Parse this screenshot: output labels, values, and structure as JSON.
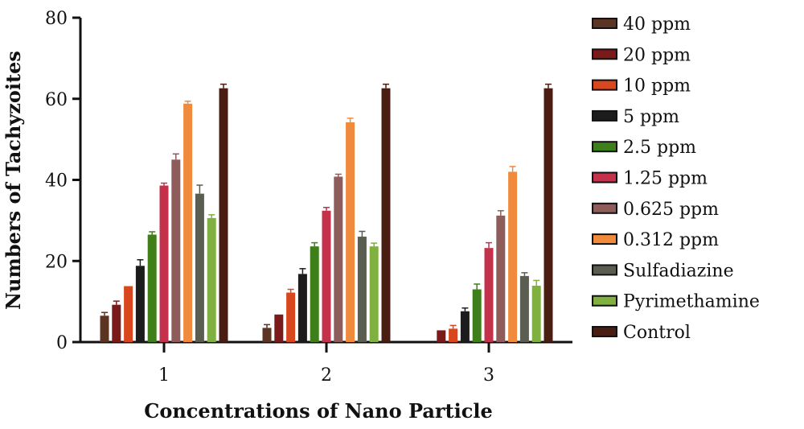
{
  "chart_data": {
    "type": "bar",
    "title": "",
    "xlabel": "Concentrations of Nano Particle",
    "ylabel": "Numbers of Tachyzoites",
    "ylim": [
      0,
      80
    ],
    "yticks": [
      "0",
      "20",
      "40",
      "60",
      "80"
    ],
    "categories": [
      "1",
      "2",
      "3"
    ],
    "grid": false,
    "legend_position": "right",
    "series": [
      {
        "name": "40 ppm",
        "color": "#5c3422",
        "values": [
          6.5,
          3.5,
          0
        ],
        "errors": [
          0.8,
          0.8,
          0
        ]
      },
      {
        "name": "20 ppm",
        "color": "#7a1a1a",
        "values": [
          9.2,
          6.8,
          2.9
        ],
        "errors": [
          0.9,
          0,
          0
        ]
      },
      {
        "name": "10 ppm",
        "color": "#d9471f",
        "values": [
          13.8,
          12.2,
          3.3
        ],
        "errors": [
          0,
          0.8,
          0.8
        ]
      },
      {
        "name": "5 ppm",
        "color": "#1c1c1c",
        "values": [
          18.8,
          16.8,
          7.6
        ],
        "errors": [
          1.5,
          1.3,
          0.8
        ]
      },
      {
        "name": "2.5 ppm",
        "color": "#3f7f19",
        "values": [
          26.5,
          23.6,
          13.0
        ],
        "errors": [
          0.7,
          0.9,
          1.3
        ]
      },
      {
        "name": "1.25 ppm",
        "color": "#c4314b",
        "values": [
          38.6,
          32.4,
          23.2
        ],
        "errors": [
          0.6,
          0.8,
          1.3
        ]
      },
      {
        "name": "0.625 ppm",
        "color": "#8f5c5c",
        "values": [
          45.0,
          40.8,
          31.2
        ],
        "errors": [
          1.4,
          0.6,
          1.2
        ]
      },
      {
        "name": "0.312 ppm",
        "color": "#f08a3c",
        "values": [
          58.8,
          54.2,
          42.0
        ],
        "errors": [
          0.6,
          1.0,
          1.3
        ]
      },
      {
        "name": "Sulfadiazine",
        "color": "#5a5e50",
        "values": [
          36.6,
          26.0,
          16.3
        ],
        "errors": [
          2.1,
          1.3,
          0.8
        ]
      },
      {
        "name": "Pyrimethamine",
        "color": "#7fb040",
        "values": [
          30.6,
          23.6,
          13.9
        ],
        "errors": [
          0.8,
          0.8,
          1.3
        ]
      },
      {
        "name": "Control",
        "color": "#4a1d12",
        "values": [
          62.6,
          62.6,
          62.6
        ],
        "errors": [
          1.0,
          1.0,
          1.0
        ]
      }
    ]
  }
}
